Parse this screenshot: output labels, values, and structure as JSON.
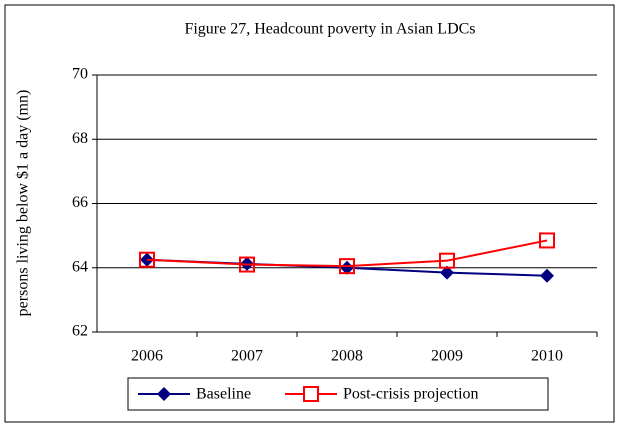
{
  "chart_data": {
    "type": "line",
    "title": "Figure 27, Headcount poverty in Asian LDCs",
    "y_label": "persons living below $1 a day (mn)",
    "categories": [
      "2006",
      "2007",
      "2008",
      "2009",
      "2010"
    ],
    "series": [
      {
        "name": "Baseline",
        "color": "#000080",
        "marker": "diamond",
        "values": [
          64.25,
          64.12,
          64.0,
          63.85,
          63.75
        ]
      },
      {
        "name": "Post-crisis projection",
        "color": "#ff0000",
        "marker": "square",
        "values": [
          64.25,
          64.1,
          64.05,
          64.22,
          64.85
        ]
      }
    ],
    "ylim": [
      62,
      70
    ],
    "yticks": [
      62,
      64,
      66,
      68,
      70
    ],
    "grid": true
  }
}
